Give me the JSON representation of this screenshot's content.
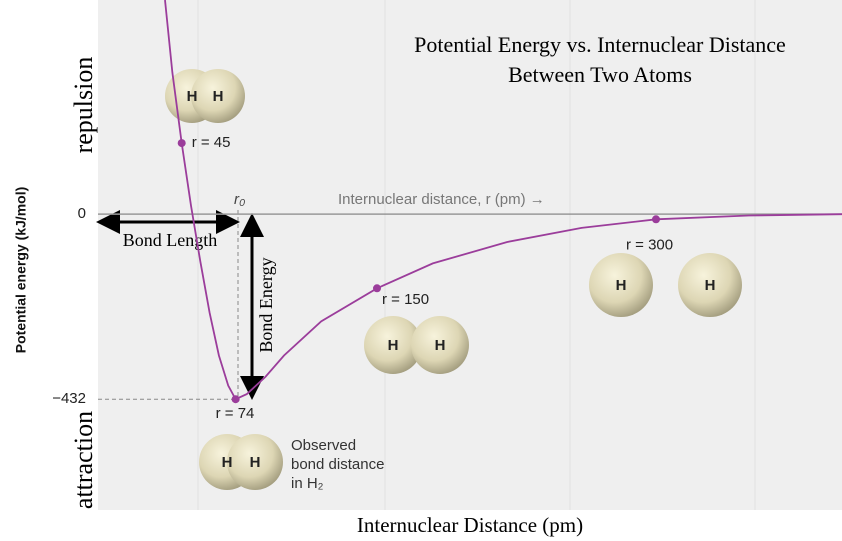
{
  "chart_data": {
    "type": "line",
    "title": [
      "Potential Energy vs. Internuclear Distance",
      "Between Two Atoms"
    ],
    "x_label": "Internuclear Distance (pm)",
    "y_label": "Potential energy (kJ/mol)",
    "axis_label": "Internuclear distance, r (pm) →",
    "region_labels": [
      "repulsion",
      "attraction"
    ],
    "xlim": [
      0,
      400
    ],
    "ylim": [
      -700,
      500
    ],
    "yticks": [
      0,
      {
        "value": -432,
        "label": "−432"
      }
    ],
    "series": [
      {
        "color": "#9b3d9b",
        "x": [
          36,
          40,
          45,
          50,
          55,
          60,
          65,
          70,
          74,
          80,
          90,
          100,
          120,
          150,
          180,
          220,
          260,
          300,
          350,
          400
        ],
        "values": [
          500,
          330,
          166,
          20,
          -110,
          -230,
          -330,
          -400,
          -432,
          -420,
          -380,
          -330,
          -250,
          -173,
          -115,
          -65,
          -32,
          -12,
          -3,
          0
        ]
      }
    ],
    "points": [
      {
        "r": 45,
        "energy": 166,
        "label": "r = 45"
      },
      {
        "r": 74,
        "energy": -432,
        "label": "r = 74"
      },
      {
        "r": 150,
        "energy": -173,
        "label": "r = 150"
      },
      {
        "r": 300,
        "energy": -12,
        "label": "r = 300"
      }
    ],
    "r0_label": "r₀",
    "annotations": {
      "bond_length": "Bond Length",
      "bond_energy": "Bond Energy",
      "observed": [
        "Observed",
        "bond distance",
        "in H₂"
      ]
    },
    "atom_label": "H"
  }
}
